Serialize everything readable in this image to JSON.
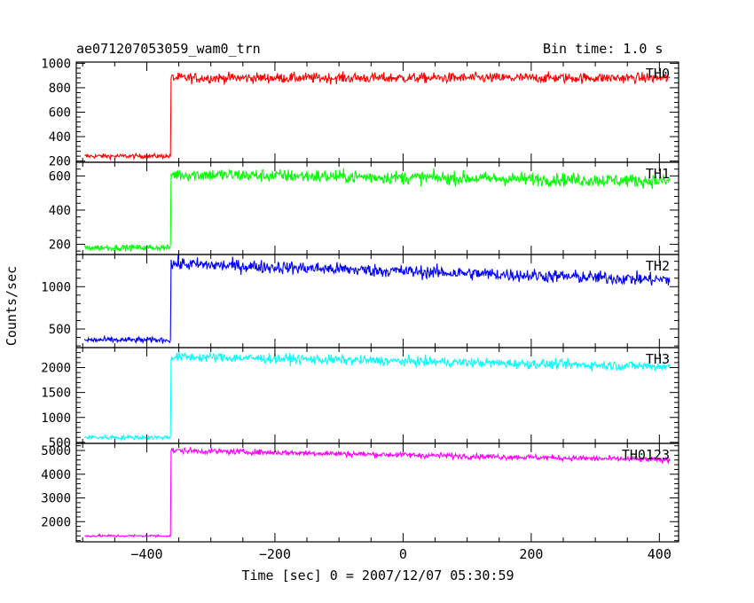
{
  "header": {
    "title": "ae071207053059_wam0_trn",
    "bin_time": "Bin time: 1.0 s"
  },
  "chart_data": {
    "type": "line",
    "title": "ae071207053059_wam0_trn",
    "xlabel": "Time [sec] 0 = 2007/12/07 05:30:59",
    "ylabel": "Counts/sec",
    "xlim": [
      -510,
      430
    ],
    "x_ticks": [
      -400,
      -200,
      0,
      200,
      400
    ],
    "x_tick_labels": [
      "−400",
      "−200",
      "0",
      "200",
      "400"
    ],
    "x_sampling": {
      "start": -497,
      "end": 416,
      "step": 1
    },
    "step_time": -362,
    "grid": false,
    "panels": [
      {
        "name": "TH0",
        "color": "#ff0000",
        "ylim": [
          190,
          1010
        ],
        "y_ticks": [
          200,
          400,
          600,
          800,
          1000
        ],
        "y_tick_labels": [
          "200",
          "400",
          "600",
          "800",
          "1000"
        ],
        "pre_level": 240,
        "post_start_level": 880,
        "post_end_level": 880,
        "noise_amplitude": 30
      },
      {
        "name": "TH1",
        "color": "#00ff00",
        "ylim": [
          140,
          680
        ],
        "y_ticks": [
          200,
          400,
          600
        ],
        "y_tick_labels": [
          "200",
          "400",
          "600"
        ],
        "pre_level": 180,
        "post_start_level": 610,
        "post_end_level": 570,
        "noise_amplitude": 28
      },
      {
        "name": "TH2",
        "color": "#0000ff",
        "ylim": [
          280,
          1380
        ],
        "y_ticks": [
          500,
          1000
        ],
        "y_tick_labels": [
          "500",
          "1000"
        ],
        "pre_level": 370,
        "post_start_level": 1270,
        "post_end_level": 1080,
        "noise_amplitude": 55
      },
      {
        "name": "TH3",
        "color": "#00ffff",
        "ylim": [
          480,
          2400
        ],
        "y_ticks": [
          500,
          1000,
          1500,
          2000
        ],
        "y_tick_labels": [
          "500",
          "1000",
          "1500",
          "2000"
        ],
        "pre_level": 600,
        "post_start_level": 2220,
        "post_end_level": 2020,
        "noise_amplitude": 70
      },
      {
        "name": "TH0123",
        "color": "#ff00ff",
        "ylim": [
          1150,
          5300
        ],
        "y_ticks": [
          2000,
          3000,
          4000,
          5000
        ],
        "y_tick_labels": [
          "2000",
          "3000",
          "4000",
          "5000"
        ],
        "pre_level": 1400,
        "post_start_level": 5000,
        "post_end_level": 4600,
        "noise_amplitude": 85
      }
    ]
  }
}
